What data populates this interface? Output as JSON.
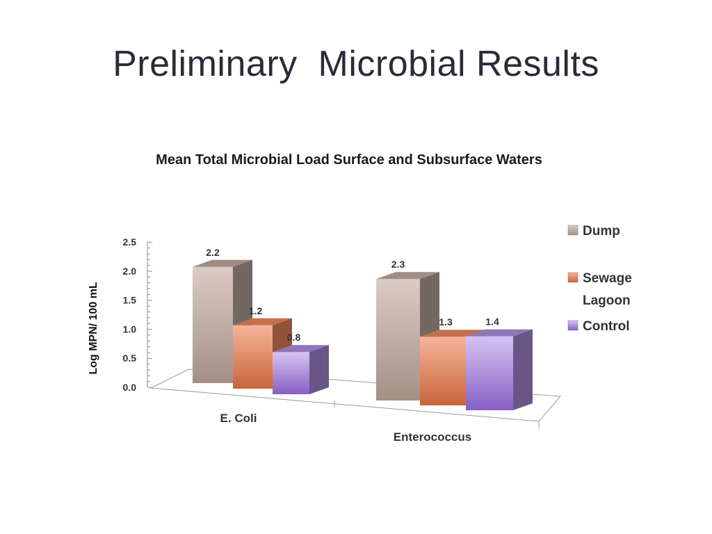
{
  "slide": {
    "title": "Preliminary  Microbial Results"
  },
  "chart_data": {
    "type": "bar",
    "title": "Mean Total Microbial Load Surface and Subsurface Waters",
    "xlabel": "",
    "ylabel": "Log MPN/ 100 mL",
    "ylim": [
      0,
      2.5
    ],
    "yticks": [
      "0.0",
      "0.5",
      "1.0",
      "1.5",
      "2.0",
      "2.5"
    ],
    "categories": [
      "E. Coli",
      "Enterococcus"
    ],
    "series": [
      {
        "name": "Dump",
        "values": [
          2.2,
          2.3
        ],
        "labels": [
          "2.2",
          "2.3"
        ],
        "color": "#b9a69d"
      },
      {
        "name": "Sewage Lagoon",
        "values": [
          1.2,
          1.3
        ],
        "labels": [
          "1.2",
          "1.3"
        ],
        "color": "#e8845a"
      },
      {
        "name": "Control",
        "values": [
          0.8,
          1.4
        ],
        "labels": [
          "0.8",
          "1.4"
        ],
        "color": "#a98bd8"
      }
    ],
    "legend": {
      "position": "right",
      "entries": [
        "Dump",
        "Sewage Lagoon",
        "Control"
      ]
    },
    "grid": false,
    "style": "3d-clustered-column"
  }
}
